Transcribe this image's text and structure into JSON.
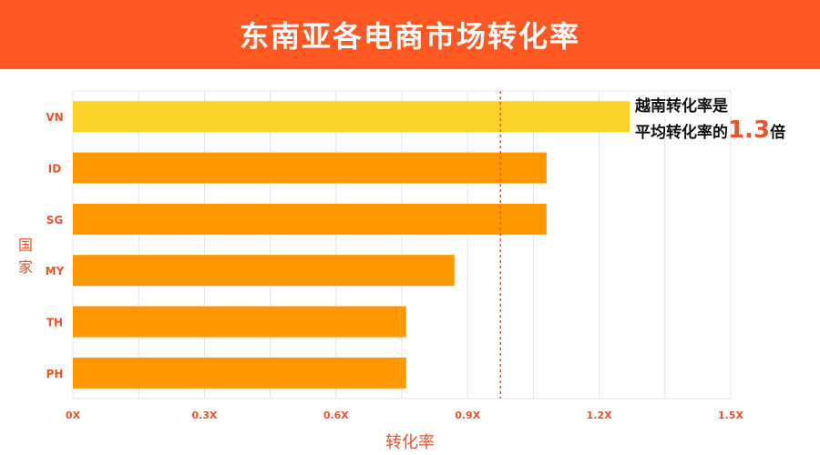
{
  "header": {
    "title": "东南亚各电商市场转化率"
  },
  "annotation": {
    "line1": "越南转化率是",
    "line2_prefix": "平均转化率的",
    "value": "1.3",
    "suffix": "倍"
  },
  "colors": {
    "header_bg": "#FF5722",
    "bar_highlight": "#FDD32A",
    "bar_default": "#FF9800",
    "label_accent": "#E8542B",
    "grid": "#E4E4E4",
    "average_line": "#E8542B"
  },
  "chart_data": {
    "type": "bar",
    "orientation": "horizontal",
    "title": "东南亚各电商市场转化率",
    "xlabel": "转化率",
    "ylabel": "国家",
    "categories": [
      "VN",
      "ID",
      "SG",
      "MY",
      "TH",
      "PH"
    ],
    "values": [
      1.27,
      1.08,
      1.08,
      0.87,
      0.76,
      0.76
    ],
    "highlight_category": "VN",
    "average_line": 0.975,
    "xlim": [
      0,
      1.5
    ],
    "xticks": [
      0,
      0.3,
      0.6,
      0.9,
      1.2,
      1.5
    ],
    "xtick_labels": [
      "0X",
      "0.3X",
      "0.6X",
      "0.9X",
      "1.2X",
      "1.5X"
    ],
    "grid": true
  }
}
